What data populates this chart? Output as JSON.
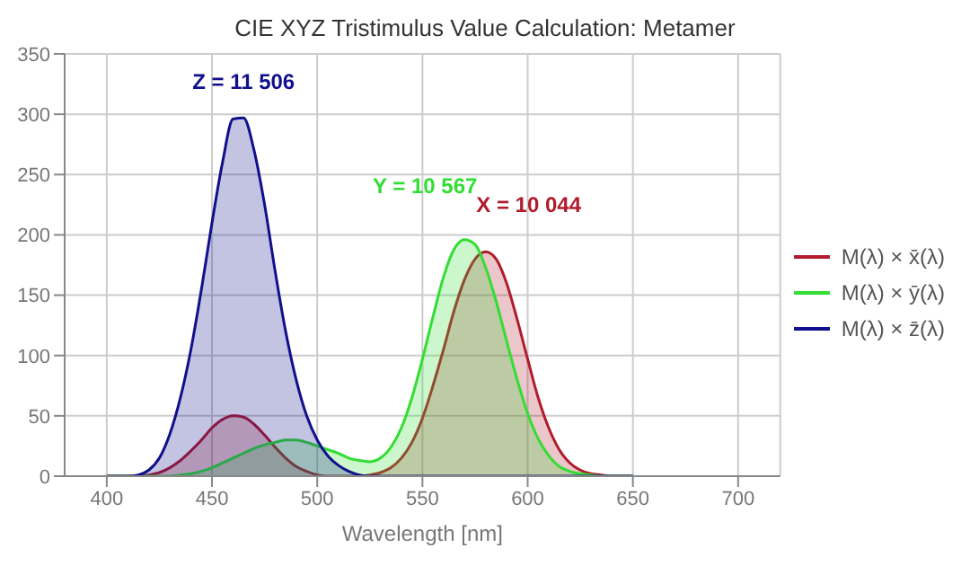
{
  "chart_data": {
    "type": "area",
    "title": "CIE XYZ Tristimulus Value Calculation: Metamer",
    "xlabel": "Wavelength [nm]",
    "x": [
      400,
      405,
      410,
      415,
      420,
      425,
      430,
      435,
      440,
      445,
      450,
      455,
      460,
      465,
      470,
      475,
      480,
      485,
      490,
      495,
      500,
      505,
      510,
      515,
      520,
      525,
      530,
      535,
      540,
      545,
      550,
      555,
      560,
      565,
      570,
      575,
      580,
      585,
      590,
      595,
      600,
      605,
      610,
      615,
      620,
      625,
      630,
      635,
      640,
      645,
      650
    ],
    "series": [
      {
        "name": "M(λ) × x̄(λ)",
        "color": "#b01c2c",
        "values": [
          0,
          0,
          0,
          0,
          1,
          3,
          7,
          13,
          21,
          30,
          40,
          47,
          50,
          49,
          43,
          34,
          24,
          15,
          8,
          4,
          1,
          0,
          0,
          0,
          0,
          1,
          3,
          7,
          15,
          28,
          48,
          75,
          105,
          137,
          163,
          180,
          186,
          180,
          160,
          130,
          97,
          65,
          40,
          22,
          11,
          5,
          2,
          1,
          0,
          0,
          0
        ]
      },
      {
        "name": "M(λ) × ȳ(λ)",
        "color": "#33dd33",
        "values": [
          0,
          0,
          0,
          0,
          0,
          0,
          0,
          1,
          2,
          4,
          7,
          11,
          15,
          19,
          23,
          26,
          28,
          30,
          30,
          28,
          25,
          22,
          19,
          15,
          13,
          12,
          15,
          24,
          40,
          65,
          97,
          132,
          165,
          188,
          196,
          192,
          173,
          145,
          112,
          80,
          52,
          31,
          17,
          8,
          4,
          2,
          1,
          0,
          0,
          0,
          0
        ]
      },
      {
        "name": "M(λ) × z̄(λ)",
        "color": "#10108c",
        "values": [
          0,
          0,
          0,
          1,
          5,
          15,
          35,
          65,
          105,
          155,
          210,
          260,
          296,
          297,
          270,
          225,
          170,
          120,
          80,
          50,
          30,
          17,
          9,
          4,
          1,
          0,
          0,
          0,
          0,
          0,
          0,
          0,
          0,
          0,
          0,
          0,
          0,
          0,
          0,
          0,
          0,
          0,
          0,
          0,
          0,
          0,
          0,
          0,
          0,
          0,
          0
        ]
      }
    ],
    "annotations": [
      "Z = 11 506",
      "Y = 10 567",
      "X = 10 044"
    ],
    "xlim": [
      380,
      720
    ],
    "xticks": [
      400,
      450,
      500,
      550,
      600,
      650,
      700
    ],
    "ylim": [
      0,
      350
    ],
    "yticks": [
      0,
      50,
      100,
      150,
      200,
      250,
      300,
      350
    ],
    "grid": true,
    "legend": "right"
  }
}
